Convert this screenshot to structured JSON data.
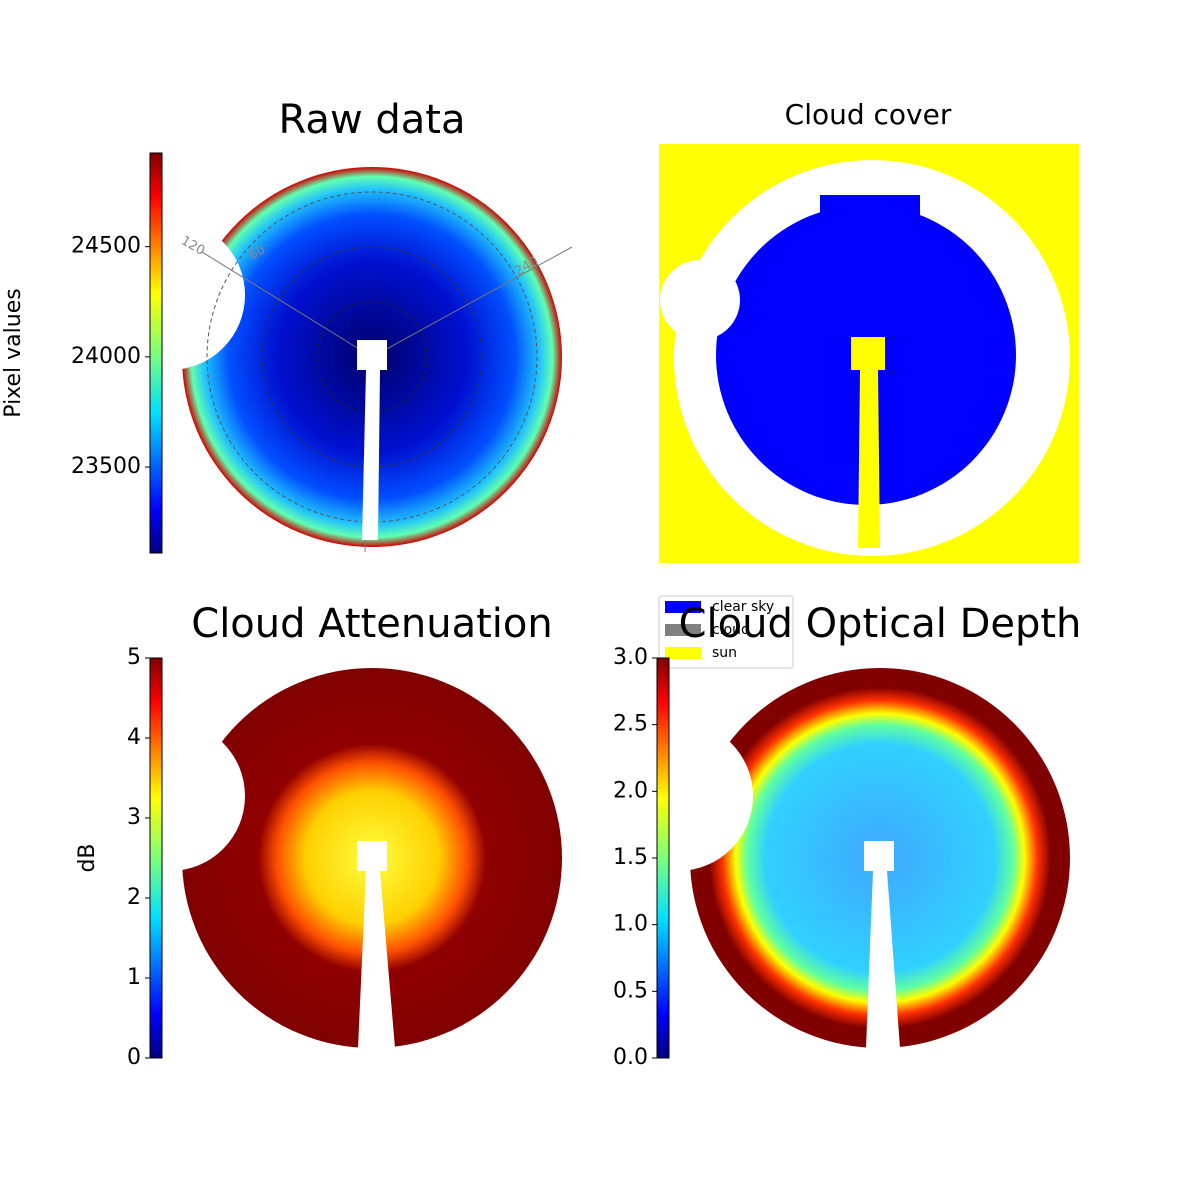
{
  "chart_data": [
    {
      "type": "image",
      "title": "Raw data",
      "colorbar": {
        "label": "Pixel values",
        "lim": [
          23110,
          24925
        ],
        "ticks": [
          23500,
          24000,
          24500
        ]
      },
      "annotations": [
        "120",
        "60",
        "240"
      ]
    },
    {
      "type": "image",
      "title": "Cloud cover",
      "legend": {
        "names": [
          "clear sky",
          "cloud",
          "sun"
        ],
        "colors": [
          "#0000ff",
          "#808080",
          "#ffff00"
        ]
      }
    },
    {
      "type": "image",
      "title": "Cloud Attenuation",
      "colorbar": {
        "label": "dB",
        "lim": [
          0,
          5
        ],
        "ticks": [
          0,
          1,
          2,
          3,
          4,
          5
        ]
      }
    },
    {
      "type": "image",
      "title": "Cloud Optical Depth",
      "colorbar": {
        "lim": [
          0,
          3
        ],
        "ticks": [
          {
            "value": 0,
            "label": "0.0"
          },
          {
            "value": 0.5,
            "label": "0.5"
          },
          {
            "value": 1,
            "label": "1.0"
          },
          {
            "value": 1.5,
            "label": "1.5"
          },
          {
            "value": 2,
            "label": "2.0"
          },
          {
            "value": 2.5,
            "label": "2.5"
          },
          {
            "value": 3,
            "label": "3.0"
          }
        ]
      }
    }
  ]
}
